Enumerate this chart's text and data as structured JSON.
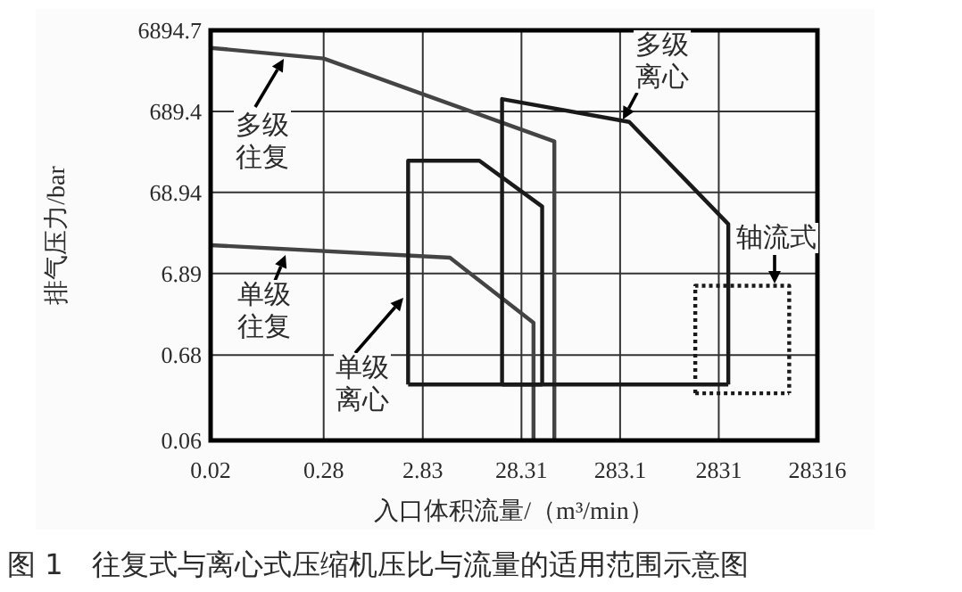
{
  "chart_data": {
    "type": "line",
    "xlabel": "入口体积流量/（m³/min）",
    "ylabel": "排气压力/bar",
    "log": "xy",
    "grid": true,
    "marker": "none",
    "xlim": [
      0.02,
      28316
    ],
    "ylim": [
      0.06,
      6894.7
    ],
    "xticks": [
      0.02,
      0.28,
      2.83,
      28.31,
      283.1,
      2831,
      28316
    ],
    "yticks": [
      0.06,
      0.68,
      6.89,
      68.94,
      689.4,
      6894.7
    ],
    "series": [
      {
        "color": "#444444",
        "line_style": "solid",
        "x": [
          0.02,
          0.28,
          61,
          61
        ],
        "values": [
          4185,
          3095,
          294,
          0.06
        ]
      },
      {
        "color": "#444444",
        "line_style": "solid",
        "x": [
          0.02,
          5.33,
          37.5,
          37.5
        ],
        "values": [
          15.4,
          10.8,
          1.7,
          0.06
        ]
      },
      {
        "color": "#1a1a1a",
        "line_style": "solid",
        "x": [
          2.01,
          2.01,
          10.6,
          45.9,
          45.9
        ],
        "values": [
          0.294,
          170,
          170,
          46.2,
          0.294
        ]
      },
      {
        "color": "#1a1a1a",
        "line_style": "solid",
        "x": [
          2.01,
          45.9
        ],
        "values": [
          0.294,
          0.294
        ]
      },
      {
        "color": "#1a1a1a",
        "line_style": "solid",
        "x": [
          18,
          18,
          350,
          3537,
          3537
        ],
        "values": [
          0.294,
          979,
          511,
          28,
          0.294
        ]
      },
      {
        "color": "#1a1a1a",
        "line_style": "solid",
        "x": [
          18,
          3537
        ],
        "values": [
          0.294,
          0.294
        ]
      },
      {
        "color": "#1a1a1a",
        "line_style": "dotted",
        "x": [
          1636,
          1636,
          14650,
          14650
        ],
        "values": [
          0.229,
          4.86,
          4.86,
          0.229
        ]
      },
      {
        "color": "#1a1a1a",
        "line_style": "dotted",
        "x": [
          1636,
          14650
        ],
        "values": [
          0.229,
          0.229
        ]
      }
    ],
    "annotations": [
      "多级往复",
      "单级往复",
      "单级离心",
      "多级离心",
      "轴流式",
      "图 1　往复式与离心式压缩机压比与流量的适用范围示意图"
    ]
  }
}
